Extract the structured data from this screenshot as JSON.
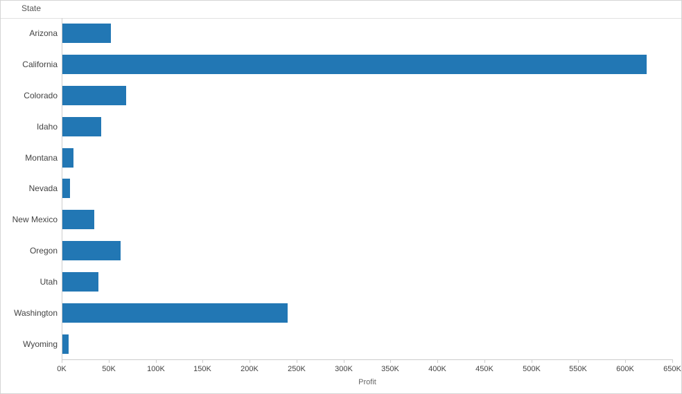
{
  "chart": {
    "row_header": "State",
    "axis_title": "Profit"
  },
  "chart_data": {
    "type": "bar",
    "orientation": "horizontal",
    "title": "",
    "xlabel": "Profit",
    "ylabel": "State",
    "unit": "K",
    "categories": [
      "Arizona",
      "California",
      "Colorado",
      "Idaho",
      "Montana",
      "Nevada",
      "New Mexico",
      "Oregon",
      "Utah",
      "Washington",
      "Wyoming"
    ],
    "values": [
      52,
      622,
      68,
      41,
      12,
      8,
      34,
      62,
      38,
      240,
      7
    ],
    "xlim": [
      0,
      650
    ],
    "x_tick_values": [
      0,
      50,
      100,
      150,
      200,
      250,
      300,
      350,
      400,
      450,
      500,
      550,
      600,
      650
    ],
    "x_ticks": [
      "0K",
      "50K",
      "100K",
      "150K",
      "200K",
      "250K",
      "300K",
      "350K",
      "400K",
      "450K",
      "500K",
      "550K",
      "600K",
      "650K"
    ],
    "bar_color": "#2277b4",
    "grid": false,
    "legend": "none"
  }
}
